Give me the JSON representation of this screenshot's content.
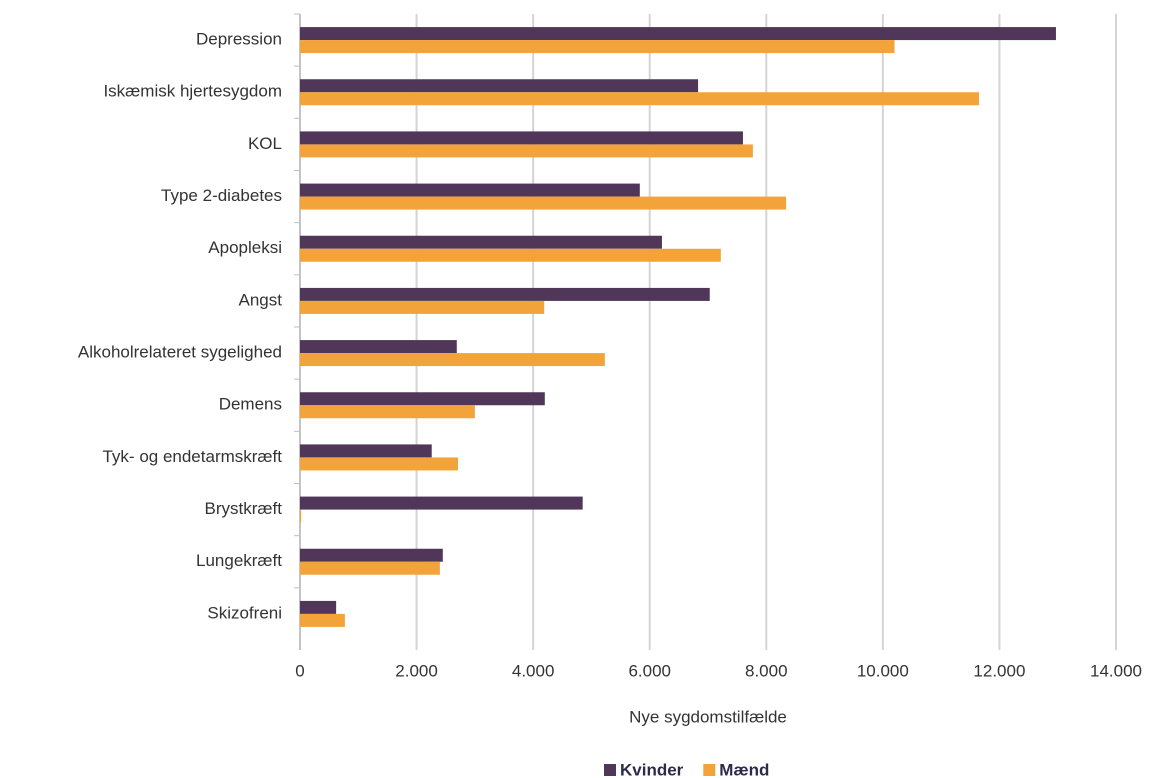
{
  "chart_data": {
    "type": "barh",
    "xlabel": "Nye sygdomstilfælde",
    "categories": [
      "Depression",
      "Iskæmisk hjertesygdom",
      "KOL",
      "Type 2-diabetes",
      "Apopleksi",
      "Angst",
      "Alkoholrelateret sygelighed",
      "Demens",
      "Tyk- og endetarmskræft",
      "Brystkræft",
      "Lungekræft",
      "Skizofreni"
    ],
    "series": [
      {
        "name": "Kvinder",
        "color": "#50375a",
        "values": [
          12970,
          6830,
          7600,
          5830,
          6210,
          7030,
          2690,
          4200,
          2260,
          4850,
          2450,
          620
        ]
      },
      {
        "name": "Mænd",
        "color": "#f2a33a",
        "values": [
          10200,
          11650,
          7770,
          8340,
          7220,
          4190,
          5230,
          3000,
          2710,
          20,
          2400,
          770
        ]
      }
    ],
    "xlim": [
      0,
      14000
    ],
    "xticks": [
      0,
      {
        "value": 2000,
        "label": "2.000"
      },
      {
        "value": 4000,
        "label": "4.000"
      },
      {
        "value": 6000,
        "label": "6.000"
      },
      {
        "value": 8000,
        "label": "8.000"
      },
      {
        "value": 10000,
        "label": "10.000"
      },
      {
        "value": 12000,
        "label": "12.000"
      },
      {
        "value": 14000,
        "label": "14.000"
      }
    ],
    "grid": true,
    "legend": "bottom"
  }
}
